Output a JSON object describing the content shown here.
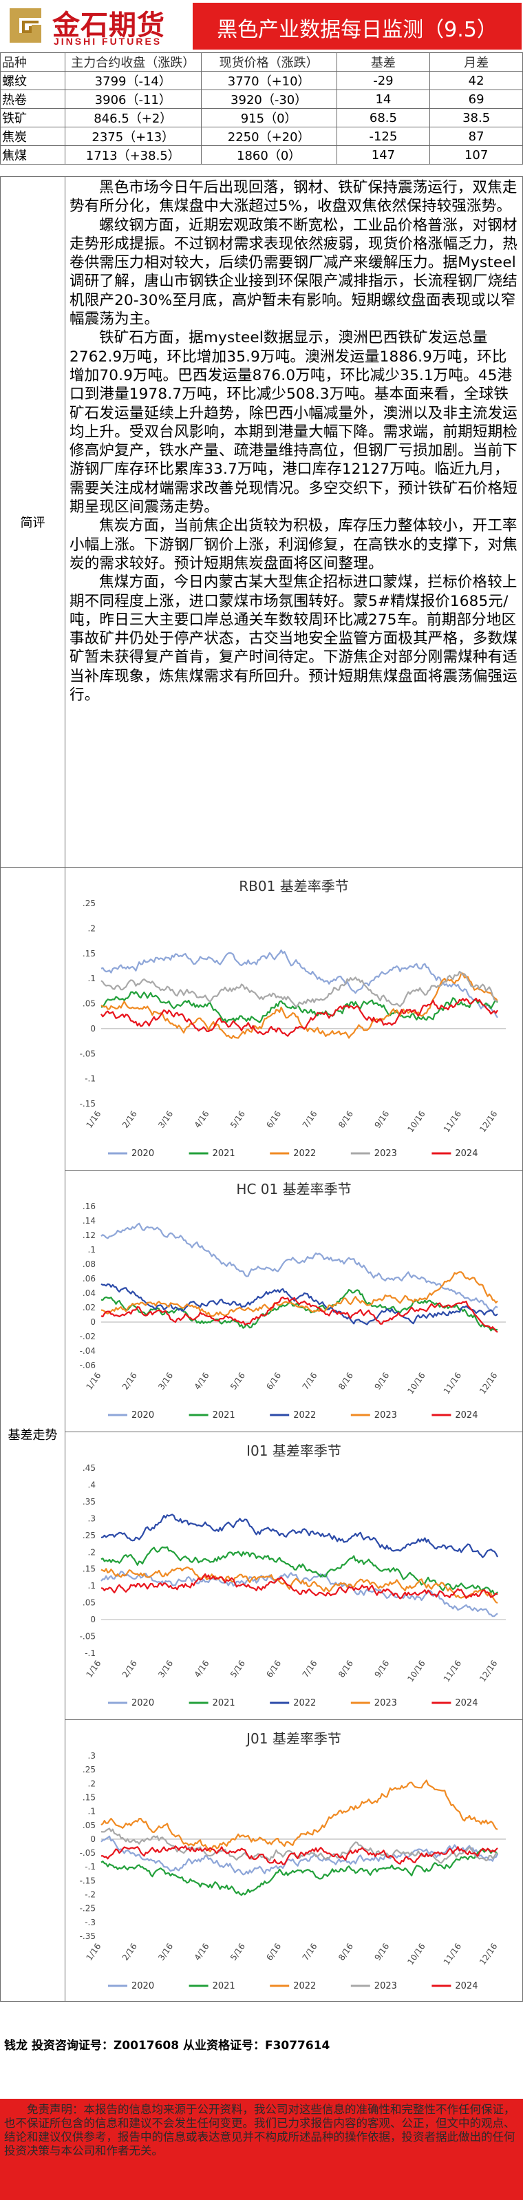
{
  "header": {
    "logo_cn": "金石期货",
    "logo_en": "JINSHI FUTURES",
    "title": "黑色产业数据每日监测（9.5）"
  },
  "table": {
    "columns": [
      "品种",
      "主力合约收盘（涨跌）",
      "现货价格（涨跌）",
      "基差",
      "月差"
    ],
    "rows": [
      [
        "螺纹",
        "3799（-14）",
        "3770（+10）",
        "-29",
        "42"
      ],
      [
        "热卷",
        "3906（-11）",
        "3920（-30）",
        "14",
        "69"
      ],
      [
        "铁矿",
        "846.5（+2）",
        "915（0）",
        "68.5",
        "38.5"
      ],
      [
        "焦炭",
        "2375（+13）",
        "2250（+20）",
        "-125",
        "87"
      ],
      [
        "焦煤",
        "1713（+38.5）",
        "1860（0）",
        "147",
        "107"
      ]
    ]
  },
  "comment": {
    "label": "简评",
    "paragraphs": [
      "黑色市场今日午后出现回落，钢材、铁矿保持震荡运行，双焦走势有所分化，焦煤盘中大涨超过5%，收盘双焦依然保持较强涨势。",
      "螺纹钢方面，近期宏观政策不断宽松，工业品价格普涨，对钢材走势形成提振。不过钢材需求表现依然疲弱，现货价格涨幅乏力，热卷供需压力相对较大，后续仍需要钢厂减产来缓解压力。据Mysteel调研了解，唐山市钢铁企业接到环保限产减排指示，长流程钢厂烧结机限产20-30%至月底，高炉暂未有影响。短期螺纹盘面表现或以窄幅震荡为主。",
      "铁矿石方面，据mysteel数据显示，澳洲巴西铁矿发运总量2762.9万吨，环比增加35.9万吨。澳洲发运量1886.9万吨，环比增加70.9万吨。巴西发运量876.0万吨，环比减少35.1万吨。45港口到港量1978.7万吨，环比减少508.3万吨。基本面来看，全球铁矿石发运量延续上升趋势，除巴西小幅减量外，澳洲以及非主流发运均上升。受双台风影响，本期到港量大幅下降。需求端，前期短期检修高炉复产，铁水产量、疏港量维持高位，但钢厂亏损加剧。当前下游钢厂库存环比累库33.7万吨，港口库存12127万吨。临近九月，需要关注成材端需求改善兑现情况。多空交织下，预计铁矿石价格短期呈现区间震荡走势。",
      "焦炭方面，当前焦企出货较为积极，库存压力整体较小，开工率小幅上涨。下游钢厂钢价上涨，利润修复，在高铁水的支撑下，对焦炭的需求较好。预计短期焦炭盘面将区间整理。",
      "焦煤方面，今日内蒙古某大型焦企招标进口蒙煤，拦标价格较上期不同程度上涨，进口蒙煤市场氛围转好。蒙5#精煤报价1685元/吨，昨日三大主要口岸总通关车数较周环比减275车。前期部分地区事故矿井仍处于停产状态，古交当地安全监管方面极其严格，多数煤矿暂未获得复产首肯，复产时间待定。下游焦企对部分刚需煤种有适当补库现象，炼焦煤需求有所回升。预计短期焦煤盘面将震荡偏强运行。"
    ]
  },
  "basis_section": {
    "label": "基差走势"
  },
  "chart_data": [
    {
      "type": "line",
      "title": "RB01 基差率季节",
      "x": [
        "1/16",
        "2/16",
        "3/16",
        "4/16",
        "5/16",
        "6/16",
        "7/16",
        "8/16",
        "9/16",
        "10/16",
        "11/16",
        "12/16"
      ],
      "ylim": [
        -0.15,
        0.25
      ],
      "yticks": [
        -0.15,
        -0.1,
        -0.05,
        0,
        0.05,
        0.1,
        0.15,
        0.2,
        0.25
      ],
      "legend_position": "bottom",
      "series": [
        {
          "name": "2020",
          "color": "#8ea6d8",
          "values": [
            0.12,
            0.13,
            0.15,
            0.14,
            0.13,
            0.15,
            0.12,
            0.09,
            0.1,
            0.12,
            0.08,
            0.04
          ]
        },
        {
          "name": "2021",
          "color": "#22a03a",
          "values": [
            0.04,
            0.07,
            0.05,
            0.04,
            0.02,
            0.06,
            0.03,
            0.05,
            0.04,
            0.03,
            0.06,
            0.05
          ]
        },
        {
          "name": "2022",
          "color": "#f08a22",
          "values": [
            0.04,
            0.05,
            0.02,
            0.0,
            -0.01,
            0.04,
            -0.01,
            -0.02,
            0.03,
            0.04,
            0.11,
            0.05
          ]
        },
        {
          "name": "2023",
          "color": "#a8a8a8",
          "values": [
            0.1,
            0.09,
            0.07,
            0.06,
            0.08,
            0.07,
            0.06,
            0.1,
            0.07,
            0.08,
            0.12,
            0.06
          ]
        },
        {
          "name": "2024",
          "color": "#e8141c",
          "values": [
            0.03,
            0.01,
            0.03,
            0.01,
            0.0,
            0.0,
            0.02,
            0.04,
            0.01,
            0.04,
            0.05,
            0.04
          ]
        }
      ]
    },
    {
      "type": "line",
      "title": "HC 01 基差率季节",
      "x": [
        "1/16",
        "2/16",
        "3/16",
        "4/16",
        "5/16",
        "6/16",
        "7/16",
        "8/16",
        "9/16",
        "10/16",
        "11/16",
        "12/16"
      ],
      "ylim": [
        -0.06,
        0.16
      ],
      "yticks": [
        -0.06,
        -0.04,
        -0.02,
        0,
        0.02,
        0.04,
        0.06,
        0.08,
        0.1,
        0.12,
        0.14,
        0.16
      ],
      "legend_position": "bottom",
      "series": [
        {
          "name": "2020",
          "color": "#8ea6d8",
          "values": [
            0.12,
            0.13,
            0.12,
            0.1,
            0.07,
            0.08,
            0.09,
            0.08,
            0.06,
            0.06,
            0.03,
            0.02
          ]
        },
        {
          "name": "2021",
          "color": "#22a03a",
          "values": [
            0.03,
            0.02,
            0.01,
            0.0,
            -0.01,
            0.02,
            0.01,
            0.04,
            0.01,
            0.03,
            0.02,
            -0.01
          ]
        },
        {
          "name": "2022",
          "color": "#2b4aa8",
          "values": [
            0.05,
            0.04,
            0.02,
            0.03,
            0.02,
            0.04,
            0.03,
            0.0,
            0.02,
            0.01,
            0.02,
            0.01
          ]
        },
        {
          "name": "2023",
          "color": "#f08a22",
          "values": [
            0.02,
            0.02,
            0.03,
            0.01,
            0.02,
            0.03,
            0.01,
            0.03,
            0.04,
            0.03,
            0.07,
            0.03
          ]
        },
        {
          "name": "2024",
          "color": "#e8141c",
          "values": [
            0.01,
            0.02,
            0.0,
            0.02,
            0.0,
            0.03,
            0.02,
            0.01,
            0.0,
            0.02,
            0.02,
            0.0
          ]
        }
      ]
    },
    {
      "type": "line",
      "title": "I01 基差率季节",
      "x": [
        "1/16",
        "2/16",
        "3/16",
        "4/16",
        "5/16",
        "6/16",
        "7/16",
        "8/16",
        "9/16",
        "10/16",
        "11/16",
        "12/16"
      ],
      "ylim": [
        -0.1,
        0.45
      ],
      "yticks": [
        -0.1,
        -0.05,
        0,
        0.05,
        0.1,
        0.15,
        0.2,
        0.25,
        0.3,
        0.35,
        0.4,
        0.45
      ],
      "legend_position": "bottom",
      "series": [
        {
          "name": "2020",
          "color": "#8ea6d8",
          "values": [
            0.12,
            0.13,
            0.11,
            0.12,
            0.1,
            0.13,
            0.11,
            0.09,
            0.08,
            0.06,
            0.04,
            0.02
          ]
        },
        {
          "name": "2021",
          "color": "#22a03a",
          "values": [
            0.18,
            0.17,
            0.2,
            0.18,
            0.2,
            0.17,
            0.15,
            0.17,
            0.14,
            0.12,
            0.1,
            0.08
          ]
        },
        {
          "name": "2022",
          "color": "#2b4aa8",
          "values": [
            0.24,
            0.25,
            0.3,
            0.27,
            0.28,
            0.26,
            0.26,
            0.24,
            0.22,
            0.23,
            0.2,
            0.19
          ]
        },
        {
          "name": "2023",
          "color": "#f08a22",
          "values": [
            0.14,
            0.13,
            0.14,
            0.12,
            0.13,
            0.11,
            0.1,
            0.1,
            0.11,
            0.1,
            0.08,
            0.07
          ]
        },
        {
          "name": "2024",
          "color": "#e8141c",
          "values": [
            0.1,
            0.11,
            0.1,
            0.12,
            0.1,
            0.11,
            0.08,
            0.09,
            0.08,
            0.07,
            0.08,
            0.07
          ]
        }
      ]
    },
    {
      "type": "line",
      "title": "J01 基差率季节",
      "x": [
        "1/16",
        "2/16",
        "3/16",
        "4/16",
        "5/16",
        "6/16",
        "7/16",
        "8/16",
        "9/16",
        "10/16",
        "11/16",
        "12/16"
      ],
      "ylim": [
        -0.35,
        0.3
      ],
      "yticks": [
        -0.35,
        -0.3,
        -0.25,
        -0.2,
        -0.15,
        -0.1,
        -0.05,
        0,
        0.05,
        0.1,
        0.15,
        0.2,
        0.25,
        0.3
      ],
      "legend_position": "bottom",
      "series": [
        {
          "name": "2020",
          "color": "#8ea6d8",
          "values": [
            0.0,
            -0.05,
            -0.1,
            -0.07,
            -0.12,
            -0.1,
            -0.05,
            -0.08,
            -0.06,
            -0.05,
            -0.04,
            -0.06
          ]
        },
        {
          "name": "2021",
          "color": "#22a03a",
          "values": [
            -0.08,
            -0.12,
            -0.14,
            -0.16,
            -0.2,
            -0.12,
            -0.15,
            -0.1,
            -0.12,
            -0.1,
            -0.08,
            -0.05
          ]
        },
        {
          "name": "2022",
          "color": "#f08a22",
          "values": [
            0.05,
            0.08,
            0.02,
            -0.04,
            0.02,
            -0.02,
            0.05,
            0.1,
            0.18,
            0.22,
            0.08,
            0.05
          ]
        },
        {
          "name": "2023",
          "color": "#a8a8a8",
          "values": [
            0.02,
            0.0,
            -0.02,
            -0.05,
            -0.08,
            -0.04,
            -0.06,
            -0.03,
            -0.05,
            -0.04,
            -0.06,
            -0.05
          ]
        },
        {
          "name": "2024",
          "color": "#e8141c",
          "values": [
            -0.05,
            -0.06,
            -0.04,
            -0.03,
            -0.06,
            -0.08,
            -0.05,
            -0.04,
            -0.06,
            -0.07,
            -0.05,
            -0.03
          ]
        }
      ]
    }
  ],
  "footer": {
    "analyst": "钱龙 投资咨询证号：Z0017608 从业资格证号：F3077614",
    "disclaimer": "免责声明：本报告的信息均来源于公开资料，我公司对这些信息的准确性和完整性不作任何保证，也不保证所包含的信息和建议不会发生任何变更。我们已力求报告内容的客观、公正，但文中的观点、结论和建议仅供参考，报告中的信息或表达意见并不构成所述品种的操作依据，投资者据此做出的任何投资决策与本公司和作者无关。"
  },
  "colors": {
    "brand_red": "#e31d1d",
    "logo_gold": "#c8a24a"
  }
}
